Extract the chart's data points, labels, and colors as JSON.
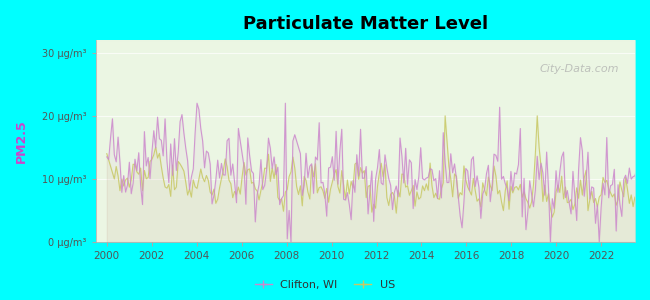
{
  "title": "Particulate Matter Level",
  "ylabel": "PM2.5",
  "xlabel": "",
  "background_color": "#00FFFF",
  "plot_bg_color_top": "#f0f8e8",
  "plot_bg_color_bottom": "#e8f8e0",
  "clifton_color": "#cc88cc",
  "us_color": "#c8c864",
  "ylim": [
    0,
    32
  ],
  "yticks": [
    0,
    10,
    20,
    30
  ],
  "ytick_labels": [
    "0 μg/m³",
    "10 μg/m³",
    "20 μg/m³",
    "30 μg/m³"
  ],
  "xmin": 1999.5,
  "xmax": 2023.5,
  "xticks": [
    2000,
    2002,
    2004,
    2006,
    2008,
    2010,
    2012,
    2014,
    2016,
    2018,
    2020,
    2022
  ],
  "watermark": "City-Data.com",
  "legend_clifton": "Clifton, WI",
  "legend_us": "US",
  "seed": 42
}
